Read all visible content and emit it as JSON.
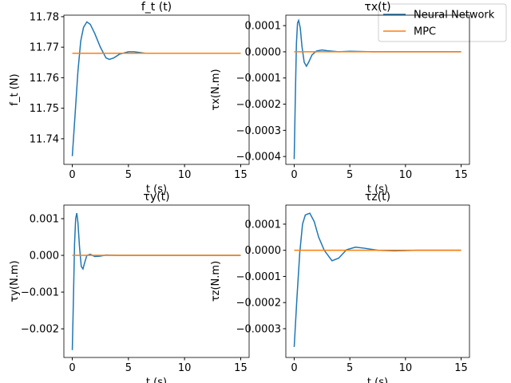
{
  "chart_data": [
    {
      "type": "line",
      "title": "f_t (t)",
      "y_label": "f_t (N)",
      "x_label": "t (s)",
      "legend": "upper right",
      "xlim": [
        -0.75,
        15.75
      ],
      "xticks": [
        0,
        5,
        10,
        15
      ],
      "ylim": [
        11.7316,
        11.7805
      ],
      "yticks": [
        11.74,
        11.75,
        11.76,
        11.77,
        11.78
      ],
      "series": [
        {
          "name": "Neural Network",
          "color": "#1f77b4",
          "x": [
            0,
            0.25,
            0.5,
            0.75,
            1,
            1.3,
            1.6,
            2,
            2.5,
            3,
            3.3,
            3.7,
            4.2,
            5,
            5.5,
            6.5,
            8,
            10,
            12.5,
            15
          ],
          "values": [
            11.7343,
            11.748,
            11.762,
            11.772,
            11.7765,
            11.7783,
            11.7775,
            11.7745,
            11.77,
            11.7665,
            11.766,
            11.7665,
            11.7677,
            11.7685,
            11.7685,
            11.768,
            11.768,
            11.768,
            11.768,
            11.768
          ]
        },
        {
          "name": "MPC",
          "color": "#ff7f0e",
          "x": [
            0,
            15
          ],
          "values": [
            11.768,
            11.768
          ]
        }
      ]
    },
    {
      "type": "line",
      "title": "τx(t)",
      "y_label": "τx(N.m)",
      "x_label": "t (s)",
      "xlim": [
        -0.75,
        15.75
      ],
      "xticks": [
        0,
        5,
        10,
        15
      ],
      "ylim": [
        -0.00043,
        0.00014
      ],
      "yticks": [
        {
          "value": -0.0004,
          "label": "−0.0004"
        },
        {
          "value": -0.0003,
          "label": "−0.0003"
        },
        {
          "value": -0.0002,
          "label": "−0.0002"
        },
        {
          "value": -0.0001,
          "label": "−0.0001"
        },
        {
          "value": 0,
          "label": "0.0000"
        },
        0.0001
      ],
      "series": [
        {
          "name": "Neural Network",
          "color": "#1f77b4",
          "x": [
            0,
            0.1,
            0.2,
            0.3,
            0.4,
            0.55,
            0.7,
            0.9,
            1.1,
            1.3,
            1.6,
            2,
            2.5,
            3,
            4,
            5,
            7,
            10,
            15
          ],
          "values": [
            -0.00041,
            -0.00018,
            3e-05,
            0.00011,
            0.00012,
            9e-05,
            2e-05,
            -4e-05,
            -5.5e-05,
            -4e-05,
            -1.2e-05,
            3e-06,
            7e-06,
            4e-06,
            0,
            2e-06,
            0,
            0,
            0
          ]
        },
        {
          "name": "MPC",
          "color": "#ff7f0e",
          "x": [
            0,
            15
          ],
          "values": [
            0,
            0
          ]
        }
      ]
    },
    {
      "type": "line",
      "title": "τy(t)",
      "y_label": "τy(N.m)",
      "x_label": "t (s)",
      "xlim": [
        -0.75,
        15.75
      ],
      "xticks": [
        0,
        5,
        10,
        15
      ],
      "ylim": [
        -0.00278,
        0.00137
      ],
      "yticks": [
        {
          "value": -0.002,
          "label": "−0.002"
        },
        {
          "value": -0.001,
          "label": "−0.001"
        },
        {
          "value": 0,
          "label": "0.000"
        },
        0.001
      ],
      "series": [
        {
          "name": "Neural Network",
          "color": "#1f77b4",
          "x": [
            0,
            0.1,
            0.2,
            0.3,
            0.4,
            0.5,
            0.65,
            0.8,
            0.95,
            1.1,
            1.3,
            1.6,
            2,
            2.5,
            3,
            4,
            6,
            10,
            15
          ],
          "values": [
            -0.00258,
            -0.0012,
            0.0003,
            0.001,
            0.00115,
            0.0009,
            0.0002,
            -0.0003,
            -0.00037,
            -0.0002,
            0,
            3e-05,
            -3e-05,
            -2e-05,
            1e-05,
            0,
            0,
            0,
            0
          ]
        },
        {
          "name": "MPC",
          "color": "#ff7f0e",
          "x": [
            0,
            15
          ],
          "values": [
            0,
            0
          ]
        }
      ]
    },
    {
      "type": "line",
      "title": "τz(t)",
      "y_label": "τz(N.m)",
      "x_label": "t (s)",
      "xlim": [
        -0.75,
        15.75
      ],
      "xticks": [
        0,
        5,
        10,
        15
      ],
      "ylim": [
        -0.00041,
        0.000173
      ],
      "yticks": [
        {
          "value": -0.0003,
          "label": "−0.0003"
        },
        {
          "value": -0.0002,
          "label": "−0.0002"
        },
        {
          "value": -0.0001,
          "label": "−0.0001"
        },
        {
          "value": 0,
          "label": "0.0000"
        },
        0.0001
      ],
      "series": [
        {
          "name": "Neural Network",
          "color": "#1f77b4",
          "x": [
            0,
            0.25,
            0.5,
            0.75,
            1,
            1.4,
            1.8,
            2.2,
            2.7,
            3.4,
            4,
            4.7,
            5.5,
            6.3,
            7.5,
            9,
            11,
            15
          ],
          "values": [
            -0.00037,
            -0.00018,
            -1e-05,
            0.0001,
            0.000135,
            0.000142,
            0.00011,
            5e-05,
            0,
            -4e-05,
            -3e-05,
            2e-06,
            1.2e-05,
            8e-06,
            0,
            -2e-06,
            0,
            0
          ]
        },
        {
          "name": "MPC",
          "color": "#ff7f0e",
          "x": [
            0,
            15
          ],
          "values": [
            0,
            0
          ]
        }
      ]
    }
  ]
}
